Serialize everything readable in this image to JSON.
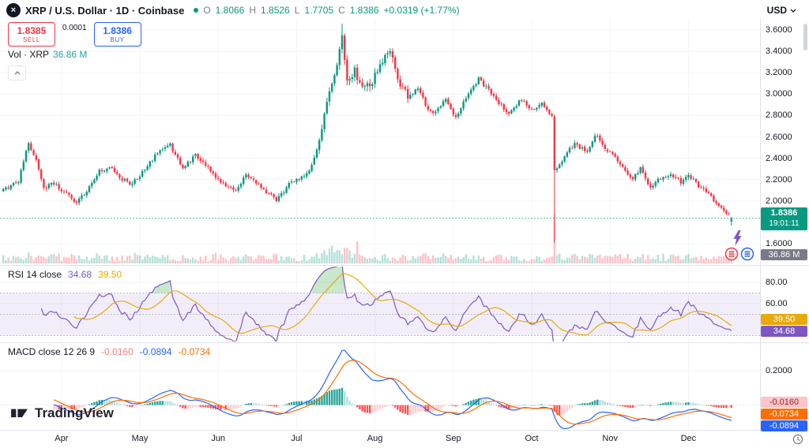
{
  "header": {
    "symbol_title": "XRP / U.S. Dollar · 1D · Coinbase",
    "ohlc": {
      "o_label": "O",
      "o_value": "1.8066",
      "h_label": "H",
      "h_value": "1.8526",
      "l_label": "L",
      "l_value": "1.7705",
      "c_label": "C",
      "c_value": "1.8386",
      "change": "+0.0319 (+1.77%)"
    },
    "currency": "USD"
  },
  "trade_panel": {
    "sell_price": "1.8385",
    "sell_label": "SELL",
    "spread": "0.0001",
    "buy_price": "1.8386",
    "buy_label": "BUY"
  },
  "volume_row": {
    "label": "Vol · XRP",
    "value": "36.86 M"
  },
  "badges": {
    "last_price": "1.8386",
    "countdown": "19:01:11",
    "volume": "36.86 M",
    "rsi_ma": "39.50",
    "rsi": "34.68",
    "macd_hist": "-0.0160",
    "macd_signal": "-0.0734",
    "macd_line": "-0.0894"
  },
  "rsi_panel": {
    "title": "RSI 14 close",
    "value": "34.68",
    "ma_value": "39.50"
  },
  "macd_panel": {
    "title": "MACD close 12 26 9",
    "hist_value": "-0.0160",
    "macd_value": "-0.0894",
    "signal_value": "-0.0734"
  },
  "logo_text": "TradingView",
  "colors": {
    "text": "#131722",
    "muted": "#787B86",
    "border": "#E0E3EB",
    "grid": "#F0F3FA",
    "up": "#089981",
    "down": "#F23645",
    "teal_light": "#26A69A",
    "vol_up": "rgba(8,153,129,0.30)",
    "vol_down": "rgba(242,54,69,0.30)",
    "accent_blue": "#2962FF",
    "badge_gray": "#787B86",
    "rsi": "#7E57C2",
    "rsi_ma": "#E8A90B",
    "rsi_band": "rgba(126,87,194,0.10)",
    "macd": "#2962FF",
    "macd_signal": "#FF6D00",
    "hist_up": "#26A69A",
    "hist_up_fade": "#B2DFDB",
    "hist_down": "#FF5252",
    "hist_down_fade": "#FFCDD2",
    "hist_badge_bg": "#FBC4C6",
    "hist_badge_text": "#99262E",
    "hist_value": "#F77C80"
  },
  "chart_data": {
    "type": "candlestick",
    "symbol": "XRP/USD",
    "interval": "1D",
    "exchange": "Coinbase",
    "ohlc_current": {
      "open": 1.8066,
      "high": 1.8526,
      "low": 1.7705,
      "close": 1.8386,
      "change": 0.0319,
      "change_pct": 1.77
    },
    "volume_current_millions": 36.86,
    "price_ticks": [
      3.6,
      3.4,
      3.2,
      3.0,
      2.8,
      2.6,
      2.4,
      2.2,
      2.0,
      1.6
    ],
    "ylim": [
      1.6,
      3.7
    ],
    "n_candles": 289,
    "anchors": [
      [
        0,
        2.1
      ],
      [
        6,
        2.18
      ],
      [
        10,
        2.55
      ],
      [
        13,
        2.38
      ],
      [
        16,
        2.12
      ],
      [
        20,
        2.16
      ],
      [
        23,
        2.1
      ],
      [
        26,
        2.04
      ],
      [
        29,
        1.98
      ],
      [
        33,
        2.1
      ],
      [
        38,
        2.28
      ],
      [
        43,
        2.32
      ],
      [
        47,
        2.2
      ],
      [
        50,
        2.16
      ],
      [
        54,
        2.24
      ],
      [
        58,
        2.36
      ],
      [
        62,
        2.48
      ],
      [
        66,
        2.52
      ],
      [
        71,
        2.3
      ],
      [
        76,
        2.42
      ],
      [
        80,
        2.34
      ],
      [
        85,
        2.2
      ],
      [
        89,
        2.14
      ],
      [
        92,
        2.08
      ],
      [
        96,
        2.25
      ],
      [
        100,
        2.18
      ],
      [
        103,
        2.1
      ],
      [
        108,
        2.0
      ],
      [
        113,
        2.16
      ],
      [
        116,
        2.2
      ],
      [
        121,
        2.28
      ],
      [
        125,
        2.55
      ],
      [
        128,
        2.9
      ],
      [
        131,
        3.2
      ],
      [
        134,
        3.52
      ],
      [
        136,
        3.12
      ],
      [
        139,
        3.22
      ],
      [
        142,
        3.05
      ],
      [
        146,
        3.12
      ],
      [
        150,
        3.32
      ],
      [
        153,
        3.42
      ],
      [
        156,
        3.12
      ],
      [
        160,
        2.98
      ],
      [
        164,
        3.06
      ],
      [
        168,
        2.86
      ],
      [
        171,
        2.82
      ],
      [
        175,
        2.96
      ],
      [
        179,
        2.78
      ],
      [
        184,
        3.0
      ],
      [
        188,
        3.14
      ],
      [
        192,
        3.04
      ],
      [
        196,
        2.92
      ],
      [
        200,
        2.82
      ],
      [
        205,
        2.95
      ],
      [
        209,
        2.86
      ],
      [
        213,
        2.92
      ],
      [
        217,
        2.8
      ],
      [
        218,
        2.28
      ],
      [
        221,
        2.38
      ],
      [
        226,
        2.54
      ],
      [
        231,
        2.46
      ],
      [
        234,
        2.62
      ],
      [
        238,
        2.5
      ],
      [
        241,
        2.44
      ],
      [
        245,
        2.3
      ],
      [
        249,
        2.2
      ],
      [
        252,
        2.3
      ],
      [
        256,
        2.12
      ],
      [
        260,
        2.22
      ],
      [
        264,
        2.26
      ],
      [
        268,
        2.18
      ],
      [
        271,
        2.24
      ],
      [
        275,
        2.14
      ],
      [
        279,
        2.06
      ],
      [
        283,
        1.95
      ],
      [
        287,
        1.88
      ],
      [
        288,
        1.8386
      ]
    ],
    "wick_overrides": [
      {
        "i": 134,
        "high": 3.66
      },
      {
        "i": 218,
        "low": 1.61
      }
    ],
    "months": [
      {
        "label": "Apr",
        "i": 23
      },
      {
        "label": "May",
        "i": 54
      },
      {
        "label": "Jun",
        "i": 85
      },
      {
        "label": "Jul",
        "i": 116
      },
      {
        "label": "Aug",
        "i": 147
      },
      {
        "label": "Sep",
        "i": 178
      },
      {
        "label": "Oct",
        "i": 209
      },
      {
        "label": "Nov",
        "i": 240
      },
      {
        "label": "Dec",
        "i": 271
      }
    ],
    "rsi": {
      "period": 14,
      "current": 34.68,
      "ma": 39.5,
      "overbought": 70,
      "oversold": 30,
      "axis_labels": [
        {
          "v": 80,
          "text": "80.00"
        },
        {
          "v": 60,
          "text": "60.00"
        }
      ]
    },
    "macd": {
      "fast": 12,
      "slow": 26,
      "signal": 9,
      "hist_value": -0.016,
      "macd_value": -0.0894,
      "signal_value": -0.0734,
      "axis_tick": {
        "v": 0.2,
        "text": "0.2000"
      }
    }
  }
}
